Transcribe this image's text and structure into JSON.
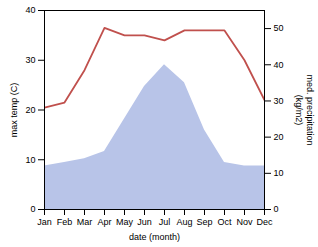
{
  "chart_data": {
    "type": "line",
    "categories": [
      "Jan",
      "Feb",
      "Mar",
      "Apr",
      "May",
      "Jun",
      "Jul",
      "Aug",
      "Sep",
      "Oct",
      "Nov",
      "Dec"
    ],
    "xlabel": "date (month)",
    "ylabel": "max temp (C)",
    "y2label": "med. precipitation\n(kg/m2)",
    "ylim": [
      0,
      40
    ],
    "yticks": [
      0,
      10,
      20,
      30,
      40
    ],
    "y2lim": [
      0,
      55
    ],
    "y2ticks": [
      0,
      10,
      20,
      30,
      40,
      50
    ],
    "series": [
      {
        "type": "area",
        "axis": "y2",
        "color": "#b8c4e8",
        "values": [
          12.0,
          13.0,
          14.0,
          16.0,
          25.0,
          34.0,
          40.0,
          35.0,
          22.0,
          13.0,
          12.0,
          12.0
        ]
      },
      {
        "type": "line",
        "color": "#c0504d",
        "values": [
          20.5,
          21.5,
          28.0,
          36.5,
          35.0,
          35.0,
          34.0,
          36.0,
          36.0,
          36.0,
          30.0,
          22.0
        ]
      }
    ]
  }
}
